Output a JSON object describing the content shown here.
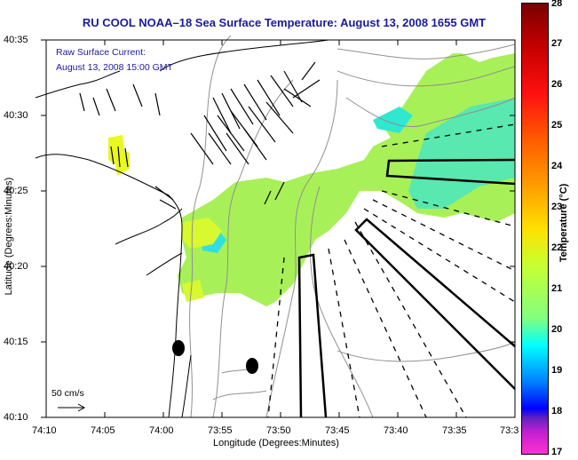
{
  "title": "RU COOL  NOAA–18  Sea Surface Temperature:  August 13, 2008 1655 GMT",
  "annotation": {
    "line1": "Raw Surface Current:",
    "line2": "August 13, 2008 15:00 GMT"
  },
  "scale_arrow": {
    "label": "50 cm/s",
    "value_cm_s": 50
  },
  "axes": {
    "xlabel": "Longitude (Degrees:Minutes)",
    "ylabel": "Latitude (Degrees:Minutes)",
    "xticks": [
      "74:10",
      "74:05",
      "74:00",
      "73:55",
      "73:50",
      "73:45",
      "73:40",
      "73:35",
      "73:3"
    ],
    "yticks": [
      "40:35",
      "40:30",
      "40:25",
      "40:20",
      "40:15",
      "40:10"
    ]
  },
  "colorbar": {
    "title": "Temperature (°C)",
    "ticks": [
      "28",
      "27",
      "26",
      "25",
      "24",
      "23",
      "22",
      "21",
      "20",
      "19",
      "18",
      "17"
    ],
    "range": [
      17,
      28
    ]
  },
  "colors": {
    "title_text": "#1a1a9c",
    "sst_warm": "#c8f030",
    "sst_mid": "#80f080",
    "sst_cool": "#30e8e0",
    "coast": "#000000",
    "bathymetry": "#909090"
  }
}
